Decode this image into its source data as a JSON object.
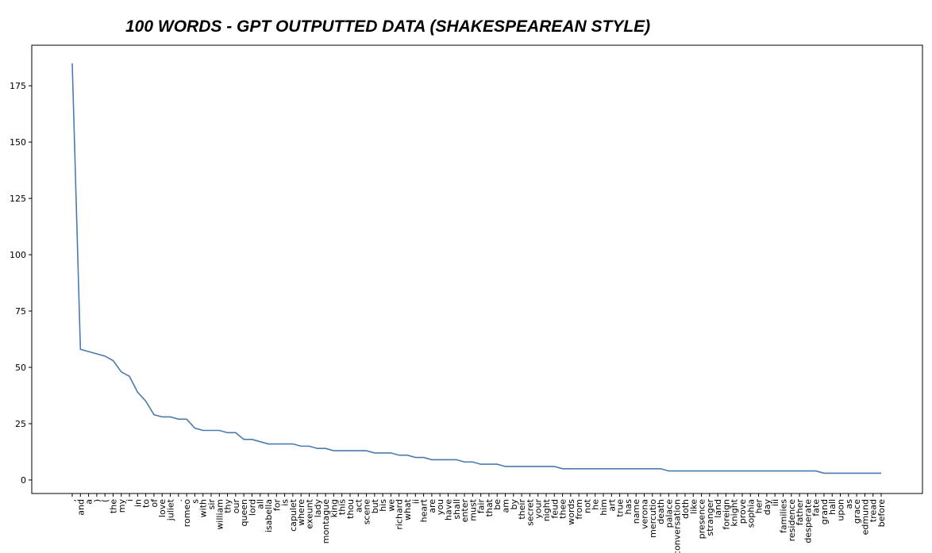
{
  "chart_data": {
    "type": "line",
    "title": "100 WORDS - GPT OUTPUTTED DATA (SHAKESPEAREAN STYLE)",
    "categories": [
      ",",
      "and",
      "a",
      ")",
      "(",
      "the",
      "my",
      "i",
      "in",
      "to",
      "of",
      "love",
      "juliet",
      ".",
      "romeo",
      "s",
      "with",
      "sir",
      "william",
      "thy",
      "our",
      "queen",
      "lord",
      "all",
      "isabella",
      "for",
      "is",
      "capulet",
      "where",
      "exeunt",
      "lady",
      "montague",
      "king",
      "this",
      "thou",
      "act",
      "scene",
      "but",
      "his",
      "we",
      "richard",
      "what",
      "ii",
      "heart",
      "are",
      "you",
      "have",
      "shall",
      "enter",
      "must",
      "fair",
      "that",
      "be",
      "am",
      "by",
      "their",
      "secret",
      "your",
      "night",
      "feud",
      "thee",
      "words",
      "from",
      "not",
      "he",
      "him",
      "art",
      "true",
      "has",
      "name",
      "verona",
      "mercutio",
      "death",
      "palace",
      "conversation",
      "doth",
      "like",
      "presence",
      "stranger",
      "land",
      "foreign",
      "knight",
      "prove",
      "sophia",
      "her",
      "day",
      "iii",
      "families",
      "residence",
      "father",
      "desperate",
      "fate",
      "grand",
      "hall",
      "upon",
      "as",
      "grace",
      "edmund",
      "tread",
      "before"
    ],
    "values": [
      185,
      58,
      57,
      56,
      55,
      53,
      48,
      46,
      39,
      35,
      29,
      28,
      28,
      27,
      27,
      23,
      22,
      22,
      22,
      21,
      21,
      18,
      18,
      17,
      16,
      16,
      16,
      16,
      15,
      15,
      14,
      14,
      13,
      13,
      13,
      13,
      13,
      12,
      12,
      12,
      11,
      11,
      10,
      10,
      9,
      9,
      9,
      9,
      8,
      8,
      7,
      7,
      7,
      6,
      6,
      6,
      6,
      6,
      6,
      6,
      5,
      5,
      5,
      5,
      5,
      5,
      5,
      5,
      5,
      5,
      5,
      5,
      5,
      4,
      4,
      4,
      4,
      4,
      4,
      4,
      4,
      4,
      4,
      4,
      4,
      4,
      4,
      4,
      4,
      4,
      4,
      4,
      3,
      3,
      3,
      3,
      3,
      3,
      3,
      3
    ],
    "color": "#4a7ab0",
    "ylim": [
      -6,
      193
    ],
    "yticks": [
      0,
      25,
      50,
      75,
      100,
      125,
      150,
      175
    ],
    "grid": false
  }
}
